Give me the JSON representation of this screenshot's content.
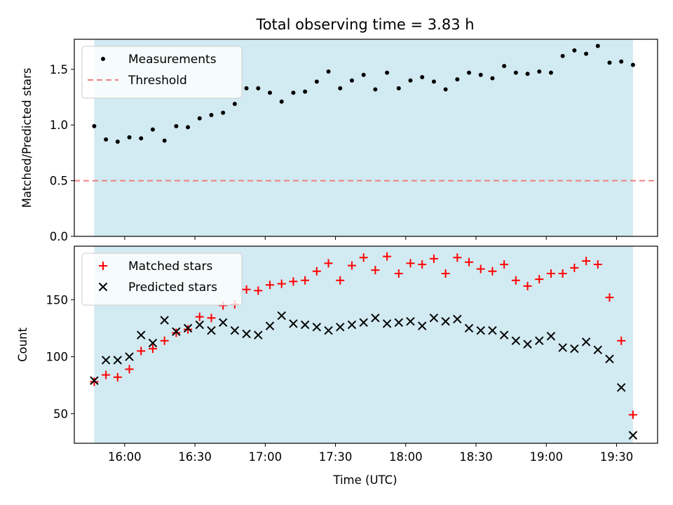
{
  "chart_data": {
    "type": "scatter",
    "title": "Total observing time = 3.83 h",
    "xlabel": "Time (UTC)",
    "x_ticks": [
      "16:00",
      "16:30",
      "17:00",
      "17:30",
      "18:00",
      "18:30",
      "19:00",
      "19:30"
    ],
    "observing_window": {
      "start": "15:47",
      "end": "19:37"
    },
    "colors": {
      "shade": "#add8e6",
      "measurements": "#000000",
      "threshold": "#f08080",
      "matched": "#ff0000",
      "predicted": "#000000"
    },
    "panels": [
      {
        "ylabel": "Matched/Predicted stars",
        "ylim": [
          0,
          1.77
        ],
        "y_ticks": [
          "0.0",
          "0.5",
          "1.0",
          "1.5"
        ],
        "legend_position": "top-left",
        "threshold": {
          "name": "Threshold",
          "value": 0.5
        },
        "series": [
          {
            "name": "Measurements",
            "marker": "dot",
            "x": [
              "15:47",
              "15:52",
              "15:57",
              "16:02",
              "16:07",
              "16:12",
              "16:17",
              "16:22",
              "16:27",
              "16:32",
              "16:37",
              "16:42",
              "16:47",
              "16:52",
              "16:57",
              "17:02",
              "17:07",
              "17:12",
              "17:17",
              "17:22",
              "17:27",
              "17:32",
              "17:37",
              "17:42",
              "17:47",
              "17:52",
              "17:57",
              "18:02",
              "18:07",
              "18:12",
              "18:17",
              "18:22",
              "18:27",
              "18:32",
              "18:37",
              "18:42",
              "18:47",
              "18:52",
              "18:57",
              "19:02",
              "19:07",
              "19:12",
              "19:17",
              "19:22",
              "19:27",
              "19:32",
              "19:37"
            ],
            "y": [
              0.99,
              0.87,
              0.85,
              0.89,
              0.88,
              0.96,
              0.86,
              0.99,
              0.98,
              1.06,
              1.09,
              1.11,
              1.19,
              1.33,
              1.33,
              1.29,
              1.21,
              1.29,
              1.3,
              1.39,
              1.48,
              1.33,
              1.4,
              1.45,
              1.32,
              1.47,
              1.33,
              1.4,
              1.43,
              1.39,
              1.32,
              1.41,
              1.47,
              1.45,
              1.42,
              1.53,
              1.47,
              1.46,
              1.48,
              1.47,
              1.62,
              1.67,
              1.64,
              1.71,
              1.56,
              1.57,
              1.54
            ]
          }
        ]
      },
      {
        "ylabel": "Count",
        "ylim": [
          24,
          197
        ],
        "y_ticks": [
          "50",
          "100",
          "150"
        ],
        "legend_position": "top-left",
        "series": [
          {
            "name": "Matched stars",
            "marker": "plus",
            "x": [
              "15:47",
              "15:52",
              "15:57",
              "16:02",
              "16:07",
              "16:12",
              "16:17",
              "16:22",
              "16:27",
              "16:32",
              "16:37",
              "16:42",
              "16:47",
              "16:52",
              "16:57",
              "17:02",
              "17:07",
              "17:12",
              "17:17",
              "17:22",
              "17:27",
              "17:32",
              "17:37",
              "17:42",
              "17:47",
              "17:52",
              "17:57",
              "18:02",
              "18:07",
              "18:12",
              "18:17",
              "18:22",
              "18:27",
              "18:32",
              "18:37",
              "18:42",
              "18:47",
              "18:52",
              "18:57",
              "19:02",
              "19:07",
              "19:12",
              "19:17",
              "19:22",
              "19:27",
              "19:32",
              "19:37"
            ],
            "y": [
              78,
              84,
              82,
              89,
              105,
              107,
              114,
              121,
              124,
              135,
              134,
              145,
              146,
              159,
              158,
              163,
              164,
              166,
              167,
              175,
              182,
              167,
              180,
              187,
              176,
              188,
              173,
              182,
              181,
              186,
              173,
              187,
              183,
              177,
              175,
              181,
              167,
              162,
              168,
              173,
              173,
              178,
              184,
              181,
              152,
              114,
              49
            ]
          },
          {
            "name": "Predicted stars",
            "marker": "x",
            "x": [
              "15:47",
              "15:52",
              "15:57",
              "16:02",
              "16:07",
              "16:12",
              "16:17",
              "16:22",
              "16:27",
              "16:32",
              "16:37",
              "16:42",
              "16:47",
              "16:52",
              "16:57",
              "17:02",
              "17:07",
              "17:12",
              "17:17",
              "17:22",
              "17:27",
              "17:32",
              "17:37",
              "17:42",
              "17:47",
              "17:52",
              "17:57",
              "18:02",
              "18:07",
              "18:12",
              "18:17",
              "18:22",
              "18:27",
              "18:32",
              "18:37",
              "18:42",
              "18:47",
              "18:52",
              "18:57",
              "19:02",
              "19:07",
              "19:12",
              "19:17",
              "19:22",
              "19:27",
              "19:32",
              "19:37"
            ],
            "y": [
              79,
              97,
              97,
              100,
              119,
              112,
              132,
              122,
              125,
              128,
              123,
              130,
              123,
              120,
              119,
              127,
              136,
              129,
              128,
              126,
              123,
              126,
              128,
              130,
              134,
              129,
              130,
              131,
              127,
              134,
              131,
              133,
              125,
              123,
              123,
              119,
              114,
              111,
              114,
              118,
              108,
              107,
              113,
              106,
              98,
              73,
              31
            ]
          }
        ]
      }
    ]
  }
}
